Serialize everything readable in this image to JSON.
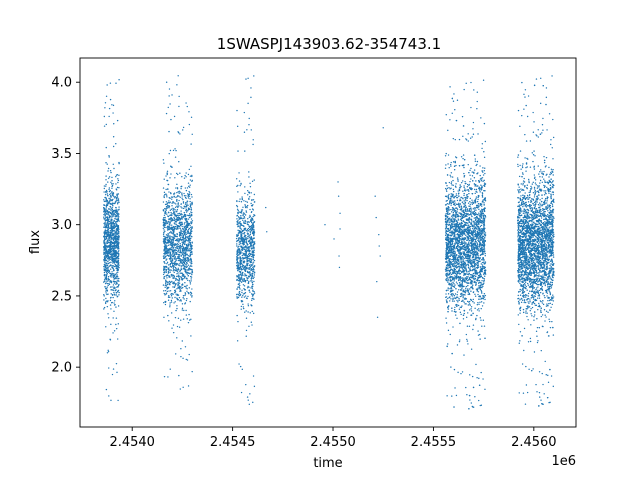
{
  "chart_data": {
    "type": "scatter",
    "title": "1SWASPJ143903.62-354743.1",
    "xlabel": "time",
    "ylabel": "flux",
    "x_offset_label": "1e6",
    "xlim": [
      2453740,
      2456210
    ],
    "ylim": [
      1.58,
      4.17
    ],
    "grid": false,
    "marker_color": "#1f77b4",
    "x_ticks": [
      {
        "value": 2454000,
        "label": "2.4540"
      },
      {
        "value": 2454500,
        "label": "2.4545"
      },
      {
        "value": 2455000,
        "label": "2.4550"
      },
      {
        "value": 2455500,
        "label": "2.4555"
      },
      {
        "value": 2456000,
        "label": "2.4560"
      }
    ],
    "y_ticks": [
      {
        "value": 2.0,
        "label": "2.0"
      },
      {
        "value": 2.5,
        "label": "2.5"
      },
      {
        "value": 3.0,
        "label": "3.0"
      },
      {
        "value": 3.5,
        "label": "3.5"
      },
      {
        "value": 4.0,
        "label": "4.0"
      }
    ],
    "clusters": [
      {
        "x_start": 2453858,
        "x_end": 2453935,
        "center": 2.87,
        "spread": 0.2,
        "count": 1200,
        "y_min": 1.76,
        "y_max": 4.05
      },
      {
        "x_start": 2454155,
        "x_end": 2454300,
        "center": 2.86,
        "spread": 0.2,
        "count": 1500,
        "y_min": 1.82,
        "y_max": 4.05
      },
      {
        "x_start": 2454520,
        "x_end": 2454610,
        "center": 2.82,
        "spread": 0.18,
        "count": 900,
        "y_min": 1.7,
        "y_max": 4.05
      },
      {
        "x_start": 2455560,
        "x_end": 2455760,
        "center": 2.87,
        "spread": 0.22,
        "count": 3000,
        "y_min": 1.68,
        "y_max": 4.02
      },
      {
        "x_start": 2455920,
        "x_end": 2456100,
        "center": 2.86,
        "spread": 0.22,
        "count": 3000,
        "y_min": 1.7,
        "y_max": 4.05
      }
    ],
    "isolated_points": [
      [
        2454665,
        3.12
      ],
      [
        2454670,
        2.95
      ],
      [
        2455025,
        3.3
      ],
      [
        2455028,
        3.2
      ],
      [
        2455030,
        2.78
      ],
      [
        2455032,
        2.7
      ],
      [
        2455035,
        3.08
      ],
      [
        2455035,
        2.97
      ],
      [
        2455210,
        3.2
      ],
      [
        2455215,
        3.05
      ],
      [
        2455218,
        2.6
      ],
      [
        2455222,
        2.35
      ],
      [
        2455228,
        2.93
      ],
      [
        2455230,
        2.85
      ],
      [
        2455235,
        2.78
      ],
      [
        2455250,
        3.68
      ],
      [
        2455005,
        2.9
      ],
      [
        2454960,
        3.0
      ]
    ]
  }
}
